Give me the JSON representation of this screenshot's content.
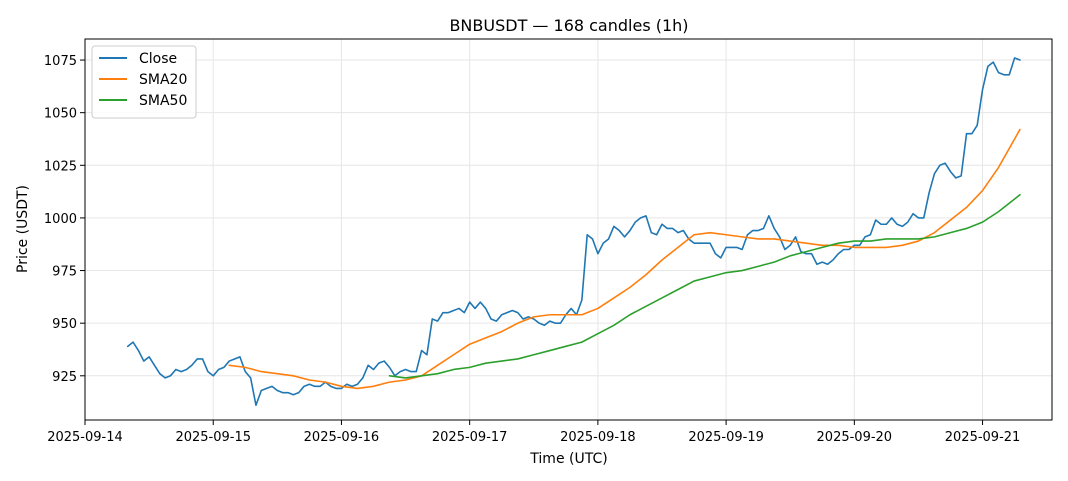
{
  "chart_data": {
    "type": "line",
    "title": "BNBUSDT — 168 candles (1h)",
    "xlabel": "Time (UTC)",
    "ylabel": "Price (USDT)",
    "x_tick_labels": [
      "2025-09-14",
      "2025-09-15",
      "2025-09-16",
      "2025-09-17",
      "2025-09-18",
      "2025-09-19",
      "2025-09-20",
      "2025-09-21"
    ],
    "y_ticks": [
      925,
      950,
      975,
      1000,
      1025,
      1050,
      1075
    ],
    "ylim": [
      904,
      1085
    ],
    "xlim": [
      "2025-09-14T00:00",
      "2025-09-21T13:00"
    ],
    "grid": true,
    "legend_position": "top-left",
    "series": [
      {
        "name": "Close",
        "color": "#1f77b4",
        "points": [
          [
            "2025-09-14T08:00",
            939
          ],
          [
            "2025-09-14T09:00",
            941
          ],
          [
            "2025-09-14T10:00",
            937
          ],
          [
            "2025-09-14T11:00",
            932
          ],
          [
            "2025-09-14T12:00",
            934
          ],
          [
            "2025-09-14T13:00",
            930
          ],
          [
            "2025-09-14T14:00",
            926
          ],
          [
            "2025-09-14T15:00",
            924
          ],
          [
            "2025-09-14T16:00",
            925
          ],
          [
            "2025-09-14T17:00",
            928
          ],
          [
            "2025-09-14T18:00",
            927
          ],
          [
            "2025-09-14T19:00",
            928
          ],
          [
            "2025-09-14T20:00",
            930
          ],
          [
            "2025-09-14T21:00",
            933
          ],
          [
            "2025-09-14T22:00",
            933
          ],
          [
            "2025-09-14T23:00",
            927
          ],
          [
            "2025-09-15T00:00",
            925
          ],
          [
            "2025-09-15T01:00",
            928
          ],
          [
            "2025-09-15T02:00",
            929
          ],
          [
            "2025-09-15T03:00",
            932
          ],
          [
            "2025-09-15T04:00",
            933
          ],
          [
            "2025-09-15T05:00",
            934
          ],
          [
            "2025-09-15T06:00",
            927
          ],
          [
            "2025-09-15T07:00",
            924
          ],
          [
            "2025-09-15T08:00",
            911
          ],
          [
            "2025-09-15T09:00",
            918
          ],
          [
            "2025-09-15T10:00",
            919
          ],
          [
            "2025-09-15T11:00",
            920
          ],
          [
            "2025-09-15T12:00",
            918
          ],
          [
            "2025-09-15T13:00",
            917
          ],
          [
            "2025-09-15T14:00",
            917
          ],
          [
            "2025-09-15T15:00",
            916
          ],
          [
            "2025-09-15T16:00",
            917
          ],
          [
            "2025-09-15T17:00",
            920
          ],
          [
            "2025-09-15T18:00",
            921
          ],
          [
            "2025-09-15T19:00",
            920
          ],
          [
            "2025-09-15T20:00",
            920
          ],
          [
            "2025-09-15T21:00",
            922
          ],
          [
            "2025-09-15T22:00",
            920
          ],
          [
            "2025-09-15T23:00",
            919
          ],
          [
            "2025-09-16T00:00",
            919
          ],
          [
            "2025-09-16T01:00",
            921
          ],
          [
            "2025-09-16T02:00",
            920
          ],
          [
            "2025-09-16T03:00",
            921
          ],
          [
            "2025-09-16T04:00",
            924
          ],
          [
            "2025-09-16T05:00",
            930
          ],
          [
            "2025-09-16T06:00",
            928
          ],
          [
            "2025-09-16T07:00",
            931
          ],
          [
            "2025-09-16T08:00",
            932
          ],
          [
            "2025-09-16T09:00",
            929
          ],
          [
            "2025-09-16T10:00",
            925
          ],
          [
            "2025-09-16T11:00",
            927
          ],
          [
            "2025-09-16T12:00",
            928
          ],
          [
            "2025-09-16T13:00",
            927
          ],
          [
            "2025-09-16T14:00",
            927
          ],
          [
            "2025-09-16T15:00",
            937
          ],
          [
            "2025-09-16T16:00",
            935
          ],
          [
            "2025-09-16T17:00",
            952
          ],
          [
            "2025-09-16T18:00",
            951
          ],
          [
            "2025-09-16T19:00",
            955
          ],
          [
            "2025-09-16T20:00",
            955
          ],
          [
            "2025-09-16T21:00",
            956
          ],
          [
            "2025-09-16T22:00",
            957
          ],
          [
            "2025-09-16T23:00",
            955
          ],
          [
            "2025-09-17T00:00",
            960
          ],
          [
            "2025-09-17T01:00",
            957
          ],
          [
            "2025-09-17T02:00",
            960
          ],
          [
            "2025-09-17T03:00",
            957
          ],
          [
            "2025-09-17T04:00",
            952
          ],
          [
            "2025-09-17T05:00",
            951
          ],
          [
            "2025-09-17T06:00",
            954
          ],
          [
            "2025-09-17T07:00",
            955
          ],
          [
            "2025-09-17T08:00",
            956
          ],
          [
            "2025-09-17T09:00",
            955
          ],
          [
            "2025-09-17T10:00",
            952
          ],
          [
            "2025-09-17T11:00",
            953
          ],
          [
            "2025-09-17T12:00",
            952
          ],
          [
            "2025-09-17T13:00",
            950
          ],
          [
            "2025-09-17T14:00",
            949
          ],
          [
            "2025-09-17T15:00",
            951
          ],
          [
            "2025-09-17T16:00",
            950
          ],
          [
            "2025-09-17T17:00",
            950
          ],
          [
            "2025-09-17T18:00",
            954
          ],
          [
            "2025-09-17T19:00",
            957
          ],
          [
            "2025-09-17T20:00",
            954
          ],
          [
            "2025-09-17T21:00",
            961
          ],
          [
            "2025-09-17T22:00",
            992
          ],
          [
            "2025-09-17T23:00",
            990
          ],
          [
            "2025-09-18T00:00",
            983
          ],
          [
            "2025-09-18T01:00",
            988
          ],
          [
            "2025-09-18T02:00",
            990
          ],
          [
            "2025-09-18T03:00",
            996
          ],
          [
            "2025-09-18T04:00",
            994
          ],
          [
            "2025-09-18T05:00",
            991
          ],
          [
            "2025-09-18T06:00",
            994
          ],
          [
            "2025-09-18T07:00",
            998
          ],
          [
            "2025-09-18T08:00",
            1000
          ],
          [
            "2025-09-18T09:00",
            1001
          ],
          [
            "2025-09-18T10:00",
            993
          ],
          [
            "2025-09-18T11:00",
            992
          ],
          [
            "2025-09-18T12:00",
            997
          ],
          [
            "2025-09-18T13:00",
            995
          ],
          [
            "2025-09-18T14:00",
            995
          ],
          [
            "2025-09-18T15:00",
            993
          ],
          [
            "2025-09-18T16:00",
            994
          ],
          [
            "2025-09-18T17:00",
            990
          ],
          [
            "2025-09-18T18:00",
            988
          ],
          [
            "2025-09-18T19:00",
            988
          ],
          [
            "2025-09-18T20:00",
            988
          ],
          [
            "2025-09-18T21:00",
            988
          ],
          [
            "2025-09-18T22:00",
            983
          ],
          [
            "2025-09-18T23:00",
            981
          ],
          [
            "2025-09-19T00:00",
            986
          ],
          [
            "2025-09-19T01:00",
            986
          ],
          [
            "2025-09-19T02:00",
            986
          ],
          [
            "2025-09-19T03:00",
            985
          ],
          [
            "2025-09-19T04:00",
            992
          ],
          [
            "2025-09-19T05:00",
            994
          ],
          [
            "2025-09-19T06:00",
            994
          ],
          [
            "2025-09-19T07:00",
            995
          ],
          [
            "2025-09-19T08:00",
            1001
          ],
          [
            "2025-09-19T09:00",
            995
          ],
          [
            "2025-09-19T10:00",
            991
          ],
          [
            "2025-09-19T11:00",
            985
          ],
          [
            "2025-09-19T12:00",
            987
          ],
          [
            "2025-09-19T13:00",
            991
          ],
          [
            "2025-09-19T14:00",
            984
          ],
          [
            "2025-09-19T15:00",
            983
          ],
          [
            "2025-09-19T16:00",
            983
          ],
          [
            "2025-09-19T17:00",
            978
          ],
          [
            "2025-09-19T18:00",
            979
          ],
          [
            "2025-09-19T19:00",
            978
          ],
          [
            "2025-09-19T20:00",
            980
          ],
          [
            "2025-09-19T21:00",
            983
          ],
          [
            "2025-09-19T22:00",
            985
          ],
          [
            "2025-09-19T23:00",
            985
          ],
          [
            "2025-09-20T00:00",
            987
          ],
          [
            "2025-09-20T01:00",
            987
          ],
          [
            "2025-09-20T02:00",
            991
          ],
          [
            "2025-09-20T03:00",
            992
          ],
          [
            "2025-09-20T04:00",
            999
          ],
          [
            "2025-09-20T05:00",
            997
          ],
          [
            "2025-09-20T06:00",
            997
          ],
          [
            "2025-09-20T07:00",
            1000
          ],
          [
            "2025-09-20T08:00",
            997
          ],
          [
            "2025-09-20T09:00",
            996
          ],
          [
            "2025-09-20T10:00",
            998
          ],
          [
            "2025-09-20T11:00",
            1002
          ],
          [
            "2025-09-20T12:00",
            1000
          ],
          [
            "2025-09-20T13:00",
            1000
          ],
          [
            "2025-09-20T14:00",
            1012
          ],
          [
            "2025-09-20T15:00",
            1021
          ],
          [
            "2025-09-20T16:00",
            1025
          ],
          [
            "2025-09-20T17:00",
            1026
          ],
          [
            "2025-09-20T18:00",
            1022
          ],
          [
            "2025-09-20T19:00",
            1019
          ],
          [
            "2025-09-20T20:00",
            1020
          ],
          [
            "2025-09-20T21:00",
            1040
          ],
          [
            "2025-09-20T22:00",
            1040
          ],
          [
            "2025-09-20T23:00",
            1044
          ],
          [
            "2025-09-21T00:00",
            1061
          ],
          [
            "2025-09-21T01:00",
            1072
          ],
          [
            "2025-09-21T02:00",
            1074
          ],
          [
            "2025-09-21T03:00",
            1069
          ],
          [
            "2025-09-21T04:00",
            1068
          ],
          [
            "2025-09-21T05:00",
            1068
          ],
          [
            "2025-09-21T06:00",
            1076
          ],
          [
            "2025-09-21T07:00",
            1075
          ]
        ]
      },
      {
        "name": "SMA20",
        "color": "#ff7f0e",
        "points": [
          [
            "2025-09-15T03:00",
            930
          ],
          [
            "2025-09-15T06:00",
            929
          ],
          [
            "2025-09-15T09:00",
            927
          ],
          [
            "2025-09-15T12:00",
            926
          ],
          [
            "2025-09-15T15:00",
            925
          ],
          [
            "2025-09-15T18:00",
            923
          ],
          [
            "2025-09-15T21:00",
            922
          ],
          [
            "2025-09-16T00:00",
            920
          ],
          [
            "2025-09-16T03:00",
            919
          ],
          [
            "2025-09-16T06:00",
            920
          ],
          [
            "2025-09-16T09:00",
            922
          ],
          [
            "2025-09-16T12:00",
            923
          ],
          [
            "2025-09-16T15:00",
            925
          ],
          [
            "2025-09-16T18:00",
            930
          ],
          [
            "2025-09-16T21:00",
            935
          ],
          [
            "2025-09-17T00:00",
            940
          ],
          [
            "2025-09-17T03:00",
            943
          ],
          [
            "2025-09-17T06:00",
            946
          ],
          [
            "2025-09-17T09:00",
            950
          ],
          [
            "2025-09-17T12:00",
            953
          ],
          [
            "2025-09-17T15:00",
            954
          ],
          [
            "2025-09-17T18:00",
            954
          ],
          [
            "2025-09-17T21:00",
            954
          ],
          [
            "2025-09-18T00:00",
            957
          ],
          [
            "2025-09-18T03:00",
            962
          ],
          [
            "2025-09-18T06:00",
            967
          ],
          [
            "2025-09-18T09:00",
            973
          ],
          [
            "2025-09-18T12:00",
            980
          ],
          [
            "2025-09-18T15:00",
            986
          ],
          [
            "2025-09-18T18:00",
            992
          ],
          [
            "2025-09-18T21:00",
            993
          ],
          [
            "2025-09-19T00:00",
            992
          ],
          [
            "2025-09-19T03:00",
            991
          ],
          [
            "2025-09-19T06:00",
            990
          ],
          [
            "2025-09-19T09:00",
            990
          ],
          [
            "2025-09-19T12:00",
            989
          ],
          [
            "2025-09-19T15:00",
            988
          ],
          [
            "2025-09-19T18:00",
            987
          ],
          [
            "2025-09-19T21:00",
            987
          ],
          [
            "2025-09-20T00:00",
            986
          ],
          [
            "2025-09-20T03:00",
            986
          ],
          [
            "2025-09-20T06:00",
            986
          ],
          [
            "2025-09-20T09:00",
            987
          ],
          [
            "2025-09-20T12:00",
            989
          ],
          [
            "2025-09-20T15:00",
            993
          ],
          [
            "2025-09-20T18:00",
            999
          ],
          [
            "2025-09-20T21:00",
            1005
          ],
          [
            "2025-09-21T00:00",
            1013
          ],
          [
            "2025-09-21T03:00",
            1024
          ],
          [
            "2025-09-21T07:00",
            1042
          ]
        ]
      },
      {
        "name": "SMA50",
        "color": "#2ca02c",
        "points": [
          [
            "2025-09-16T09:00",
            925
          ],
          [
            "2025-09-16T12:00",
            924
          ],
          [
            "2025-09-16T15:00",
            925
          ],
          [
            "2025-09-16T18:00",
            926
          ],
          [
            "2025-09-16T21:00",
            928
          ],
          [
            "2025-09-17T00:00",
            929
          ],
          [
            "2025-09-17T03:00",
            931
          ],
          [
            "2025-09-17T06:00",
            932
          ],
          [
            "2025-09-17T09:00",
            933
          ],
          [
            "2025-09-17T12:00",
            935
          ],
          [
            "2025-09-17T15:00",
            937
          ],
          [
            "2025-09-17T18:00",
            939
          ],
          [
            "2025-09-17T21:00",
            941
          ],
          [
            "2025-09-18T00:00",
            945
          ],
          [
            "2025-09-18T03:00",
            949
          ],
          [
            "2025-09-18T06:00",
            954
          ],
          [
            "2025-09-18T09:00",
            958
          ],
          [
            "2025-09-18T12:00",
            962
          ],
          [
            "2025-09-18T15:00",
            966
          ],
          [
            "2025-09-18T18:00",
            970
          ],
          [
            "2025-09-18T21:00",
            972
          ],
          [
            "2025-09-19T00:00",
            974
          ],
          [
            "2025-09-19T03:00",
            975
          ],
          [
            "2025-09-19T06:00",
            977
          ],
          [
            "2025-09-19T09:00",
            979
          ],
          [
            "2025-09-19T12:00",
            982
          ],
          [
            "2025-09-19T15:00",
            984
          ],
          [
            "2025-09-19T18:00",
            986
          ],
          [
            "2025-09-19T21:00",
            988
          ],
          [
            "2025-09-20T00:00",
            989
          ],
          [
            "2025-09-20T03:00",
            989
          ],
          [
            "2025-09-20T06:00",
            990
          ],
          [
            "2025-09-20T09:00",
            990
          ],
          [
            "2025-09-20T12:00",
            990
          ],
          [
            "2025-09-20T15:00",
            991
          ],
          [
            "2025-09-20T18:00",
            993
          ],
          [
            "2025-09-20T21:00",
            995
          ],
          [
            "2025-09-21T00:00",
            998
          ],
          [
            "2025-09-21T03:00",
            1003
          ],
          [
            "2025-09-21T07:00",
            1011
          ]
        ]
      }
    ]
  }
}
